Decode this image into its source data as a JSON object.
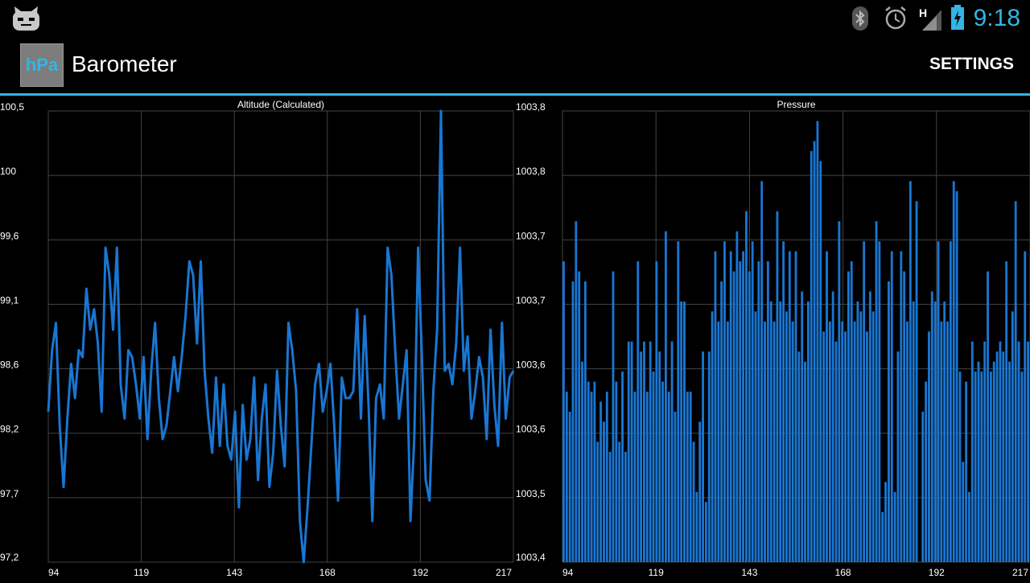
{
  "status_bar": {
    "time": "9:18",
    "network_type": "H",
    "icons": [
      "cyanogenmod-icon",
      "bluetooth-icon",
      "alarm-icon",
      "signal-icon",
      "battery-charging-icon"
    ],
    "accent_color": "#33b5e5"
  },
  "action_bar": {
    "app_icon_text": "hPa",
    "title": "Barometer",
    "settings_label": "SETTINGS"
  },
  "chart_data": [
    {
      "type": "line",
      "title": "Altitude (Calculated)",
      "color": "#1976d2",
      "x_ticks": [
        "94",
        "119",
        "143",
        "168",
        "192",
        "217"
      ],
      "y_ticks": [
        "100,5",
        "100",
        "99,6",
        "99,1",
        "98,6",
        "98,2",
        "97,7",
        "97,2"
      ],
      "ylim": [
        97.2,
        100.5
      ],
      "xlim": [
        94,
        217
      ],
      "values": [
        98.3,
        98.75,
        98.95,
        98.2,
        97.75,
        98.25,
        98.65,
        98.4,
        98.75,
        98.7,
        99.2,
        98.9,
        99.05,
        98.8,
        98.3,
        99.5,
        99.3,
        98.9,
        99.5,
        98.5,
        98.25,
        98.75,
        98.7,
        98.5,
        98.25,
        98.7,
        98.1,
        98.6,
        98.95,
        98.4,
        98.1,
        98.2,
        98.45,
        98.7,
        98.45,
        98.7,
        99.0,
        99.4,
        99.3,
        98.8,
        99.4,
        98.6,
        98.25,
        98.0,
        98.55,
        98.05,
        98.5,
        98.05,
        97.95,
        98.3,
        97.6,
        98.35,
        97.95,
        98.1,
        98.55,
        97.8,
        98.25,
        98.5,
        97.75,
        98.0,
        98.6,
        98.2,
        97.9,
        98.95,
        98.75,
        98.45,
        97.5,
        97.2,
        97.6,
        98.05,
        98.5,
        98.65,
        98.3,
        98.45,
        98.65,
        98.2,
        97.65,
        98.55,
        98.4,
        98.4,
        98.45,
        99.05,
        98.25,
        99.0,
        98.35,
        97.5,
        98.4,
        98.5,
        98.25,
        99.5,
        99.3,
        98.75,
        98.25,
        98.5,
        98.75,
        97.5,
        98.1,
        99.5,
        98.7,
        97.8,
        97.65,
        98.45,
        98.9,
        100.5,
        98.6,
        98.65,
        98.5,
        98.8,
        99.5,
        98.6,
        98.85,
        98.25,
        98.45,
        98.7,
        98.55,
        98.1,
        98.9,
        98.35,
        98.05,
        98.95,
        98.25,
        98.55,
        98.6
      ]
    },
    {
      "type": "bar",
      "title": "Pressure",
      "color": "#1976d2",
      "x_ticks": [
        "94",
        "119",
        "143",
        "168",
        "192",
        "217"
      ],
      "y_ticks": [
        "1003,8",
        "1003,8",
        "1003,7",
        "1003,7",
        "1003,6",
        "1003,6",
        "1003,5",
        "1003,4"
      ],
      "ylim": [
        1003.4,
        1003.85
      ],
      "xlim": [
        94,
        217
      ],
      "values": [
        1003.7,
        1003.57,
        1003.55,
        1003.68,
        1003.74,
        1003.69,
        1003.6,
        1003.68,
        1003.58,
        1003.57,
        1003.58,
        1003.52,
        1003.56,
        1003.54,
        1003.57,
        1003.51,
        1003.69,
        1003.58,
        1003.52,
        1003.59,
        1003.51,
        1003.62,
        1003.62,
        1003.57,
        1003.7,
        1003.61,
        1003.62,
        1003.57,
        1003.62,
        1003.59,
        1003.7,
        1003.61,
        1003.58,
        1003.73,
        1003.57,
        1003.62,
        1003.55,
        1003.72,
        1003.66,
        1003.66,
        1003.57,
        1003.57,
        1003.52,
        1003.47,
        1003.54,
        1003.61,
        1003.46,
        1003.61,
        1003.65,
        1003.71,
        1003.64,
        1003.68,
        1003.72,
        1003.64,
        1003.71,
        1003.69,
        1003.73,
        1003.7,
        1003.71,
        1003.75,
        1003.69,
        1003.72,
        1003.65,
        1003.7,
        1003.78,
        1003.64,
        1003.7,
        1003.66,
        1003.64,
        1003.75,
        1003.66,
        1003.72,
        1003.65,
        1003.71,
        1003.64,
        1003.71,
        1003.61,
        1003.67,
        1003.6,
        1003.66,
        1003.81,
        1003.82,
        1003.84,
        1003.8,
        1003.63,
        1003.71,
        1003.64,
        1003.67,
        1003.62,
        1003.74,
        1003.64,
        1003.63,
        1003.69,
        1003.7,
        1003.64,
        1003.66,
        1003.65,
        1003.72,
        1003.63,
        1003.67,
        1003.65,
        1003.74,
        1003.72,
        1003.45,
        1003.48,
        1003.68,
        1003.71,
        1003.47,
        1003.61,
        1003.71,
        1003.69,
        1003.64,
        1003.78,
        1003.66,
        1003.76,
        1003.38,
        1003.55,
        1003.58,
        1003.63,
        1003.67,
        1003.66,
        1003.72,
        1003.64,
        1003.66,
        1003.64,
        1003.72,
        1003.78,
        1003.77,
        1003.59,
        1003.5,
        1003.58,
        1003.47,
        1003.62,
        1003.59,
        1003.6,
        1003.59,
        1003.62,
        1003.69,
        1003.59,
        1003.6,
        1003.61,
        1003.62,
        1003.61,
        1003.7,
        1003.6,
        1003.65,
        1003.76,
        1003.62,
        1003.59,
        1003.71,
        1003.62
      ]
    }
  ]
}
